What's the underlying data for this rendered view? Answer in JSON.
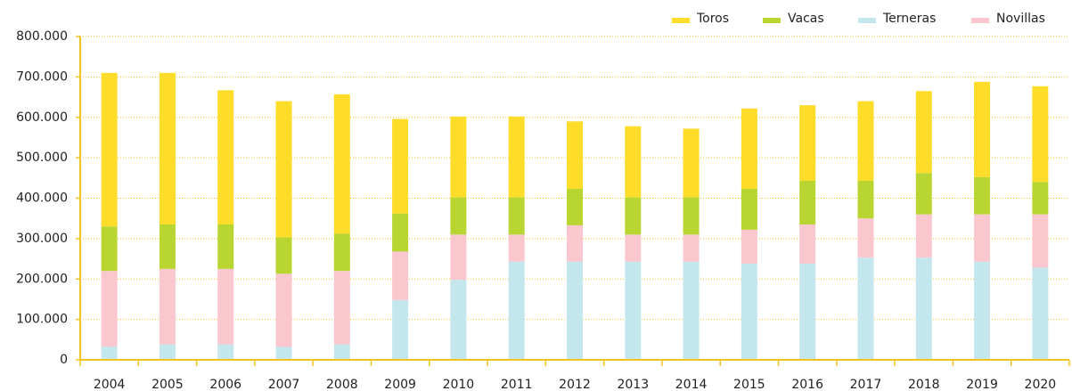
{
  "chart_data": {
    "type": "stacked_bar",
    "categories": [
      "2004",
      "2005",
      "2006",
      "2007",
      "2008",
      "2009",
      "2010",
      "2011",
      "2012",
      "2013",
      "2014",
      "2015",
      "2016",
      "2017",
      "2018",
      "2019",
      "2020"
    ],
    "series": [
      {
        "name": "Toros",
        "color": "#fddc2a",
        "values": [
          380000,
          375000,
          332000,
          337000,
          345000,
          234000,
          200000,
          200000,
          167000,
          176000,
          170000,
          199000,
          187000,
          197000,
          203000,
          236000,
          237000
        ]
      },
      {
        "name": "Vacas",
        "color": "#b9d532",
        "values": [
          110000,
          110000,
          110000,
          90000,
          92000,
          94000,
          92000,
          92000,
          90000,
          92000,
          92000,
          101000,
          108000,
          93000,
          102000,
          92000,
          80000
        ]
      },
      {
        "name": "Terneras",
        "color": "#c4e7ed",
        "values": [
          33000,
          38000,
          38000,
          32000,
          38000,
          148000,
          198000,
          243000,
          243000,
          243000,
          243000,
          238000,
          238000,
          253000,
          253000,
          243000,
          228000
        ]
      },
      {
        "name": "Novillas",
        "color": "#f9c7cd",
        "values": [
          187000,
          187000,
          187000,
          181000,
          182000,
          120000,
          112000,
          67000,
          90000,
          67000,
          67000,
          84000,
          97000,
          97000,
          107000,
          117000,
          132000
        ]
      }
    ],
    "ylim": [
      0,
      800000
    ],
    "yticks": [
      0,
      {
        "value": 100000,
        "label": "100.000"
      },
      {
        "value": 200000,
        "label": "200.000"
      },
      {
        "value": 300000,
        "label": "300.000"
      },
      {
        "value": 400000,
        "label": "400.000"
      },
      {
        "value": 500000,
        "label": "500.000"
      },
      {
        "value": 600000,
        "label": "600.000"
      },
      {
        "value": 700000,
        "label": "700.000"
      },
      {
        "value": 800000,
        "label": "800.000"
      }
    ],
    "grid": true,
    "legend": "top-right"
  }
}
